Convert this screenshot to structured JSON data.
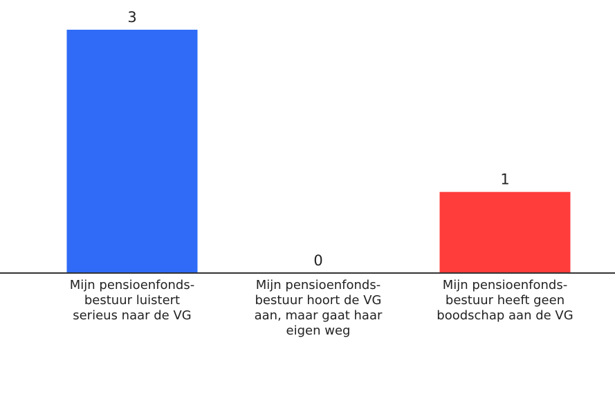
{
  "chart_data": {
    "type": "bar",
    "categories": [
      "Mijn pensioenfonds-bestuur luistert serieus naar de VG",
      "Mijn pensioenfonds-bestuur hoort de VG aan, maar gaat haar eigen weg",
      "Mijn pensioenfonds-bestuur heeft geen boodschap aan de VG"
    ],
    "values": [
      3,
      0,
      1
    ],
    "colors": [
      "#2f6bf6",
      null,
      "#ff3d3b"
    ]
  }
}
